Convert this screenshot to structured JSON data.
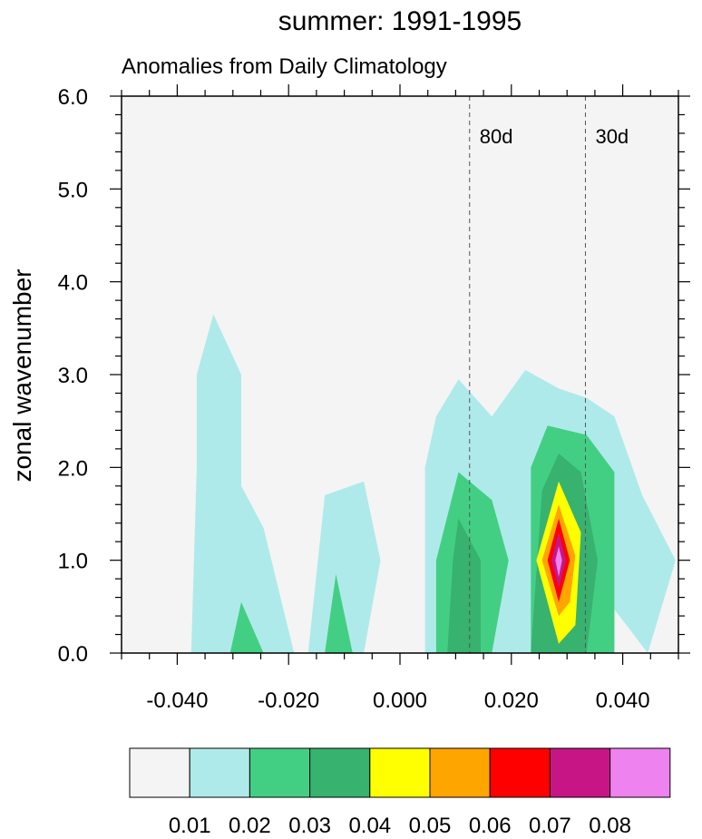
{
  "chart_data": {
    "type": "heatmap",
    "title": "summer: 1991-1995",
    "subtitle": "Anomalies from Daily Climatology",
    "xlabel": "",
    "ylabel": "zonal wavenumber",
    "xlim": [
      -0.05,
      0.05
    ],
    "ylim": [
      0,
      6
    ],
    "x_ticks": [
      -0.04,
      -0.02,
      0.0,
      0.02,
      0.04
    ],
    "x_tick_labels": [
      "-0.040",
      "-0.020",
      "0.000",
      "0.020",
      "0.040"
    ],
    "y_ticks": [
      0,
      1,
      2,
      3,
      4,
      5,
      6
    ],
    "y_tick_labels": [
      "0.0",
      "1.0",
      "2.0",
      "3.0",
      "4.0",
      "5.0",
      "6.0"
    ],
    "reference_lines": [
      {
        "x": 0.0125,
        "label": "80d"
      },
      {
        "x": 0.0333,
        "label": "30d"
      }
    ],
    "levels": [
      0.01,
      0.02,
      0.03,
      0.04,
      0.05,
      0.06,
      0.07,
      0.08
    ],
    "level_labels": [
      "0.01",
      "0.02",
      "0.03",
      "0.04",
      "0.05",
      "0.06",
      "0.07",
      "0.08"
    ],
    "colors": [
      "#f4f4f4",
      "#afeaea",
      "#43cf83",
      "#37b26f",
      "#ffff00",
      "#ffa500",
      "#ff0000",
      "#c71585",
      "#ee82ee"
    ],
    "contours": [
      {
        "level": 0.01,
        "points": [
          [
            -0.0365,
            3.0
          ],
          [
            -0.0335,
            3.65
          ],
          [
            -0.0285,
            3.0
          ],
          [
            -0.0285,
            1.8
          ],
          [
            -0.0245,
            1.35
          ],
          [
            -0.019,
            0.0
          ],
          [
            -0.0375,
            0.0
          ],
          [
            -0.0365,
            2.0
          ]
        ]
      },
      {
        "level": 0.01,
        "points": [
          [
            -0.0165,
            0.0
          ],
          [
            -0.0135,
            1.7
          ],
          [
            -0.0065,
            1.85
          ],
          [
            -0.0035,
            1.0
          ],
          [
            -0.0065,
            0.0
          ]
        ]
      },
      {
        "level": 0.01,
        "points": [
          [
            0.0045,
            0.0
          ],
          [
            0.0045,
            2.0
          ],
          [
            0.0065,
            2.55
          ],
          [
            0.0105,
            2.95
          ],
          [
            0.0165,
            2.55
          ],
          [
            0.0225,
            3.05
          ],
          [
            0.0285,
            2.85
          ],
          [
            0.0335,
            2.75
          ],
          [
            0.0385,
            2.55
          ],
          [
            0.0435,
            1.7
          ],
          [
            0.0495,
            1.0
          ],
          [
            0.0445,
            0.0
          ],
          [
            0.0375,
            0.55
          ],
          [
            0.0335,
            0.0
          ]
        ]
      },
      {
        "level": 0.02,
        "points": [
          [
            -0.0305,
            0.0
          ],
          [
            -0.0285,
            0.55
          ],
          [
            -0.0245,
            0.0
          ]
        ]
      },
      {
        "level": 0.02,
        "points": [
          [
            -0.0135,
            0.0
          ],
          [
            -0.0115,
            0.85
          ],
          [
            -0.0085,
            0.0
          ]
        ]
      },
      {
        "level": 0.02,
        "points": [
          [
            0.0065,
            0.0
          ],
          [
            0.0065,
            1.0
          ],
          [
            0.0105,
            1.95
          ],
          [
            0.0165,
            1.65
          ],
          [
            0.0195,
            1.0
          ],
          [
            0.0165,
            0.0
          ]
        ]
      },
      {
        "level": 0.02,
        "points": [
          [
            0.0235,
            0.0
          ],
          [
            0.0235,
            2.0
          ],
          [
            0.0265,
            2.45
          ],
          [
            0.0335,
            2.35
          ],
          [
            0.0385,
            1.95
          ],
          [
            0.0385,
            0.0
          ]
        ]
      },
      {
        "level": 0.03,
        "points": [
          [
            0.0085,
            0.0
          ],
          [
            0.0095,
            1.0
          ],
          [
            0.0105,
            1.45
          ],
          [
            0.0145,
            1.0
          ],
          [
            0.0145,
            0.0
          ]
        ]
      },
      {
        "level": 0.03,
        "points": [
          [
            0.0235,
            0.0
          ],
          [
            0.0255,
            1.75
          ],
          [
            0.0285,
            2.15
          ],
          [
            0.0325,
            1.95
          ],
          [
            0.0355,
            1.0
          ],
          [
            0.0335,
            0.0
          ]
        ]
      },
      {
        "level": 0.04,
        "points": [
          [
            0.0245,
            1.0
          ],
          [
            0.0285,
            1.85
          ],
          [
            0.0325,
            1.3
          ],
          [
            0.0315,
            0.3
          ],
          [
            0.0285,
            0.1
          ]
        ]
      },
      {
        "level": 0.05,
        "points": [
          [
            0.0255,
            1.0
          ],
          [
            0.0285,
            1.6
          ],
          [
            0.0315,
            1.05
          ],
          [
            0.0305,
            0.55
          ],
          [
            0.0285,
            0.4
          ]
        ]
      },
      {
        "level": 0.06,
        "points": [
          [
            0.0265,
            1.0
          ],
          [
            0.0285,
            1.45
          ],
          [
            0.0305,
            1.0
          ],
          [
            0.0285,
            0.55
          ]
        ]
      },
      {
        "level": 0.07,
        "points": [
          [
            0.0272,
            1.0
          ],
          [
            0.0285,
            1.3
          ],
          [
            0.0298,
            1.0
          ],
          [
            0.0285,
            0.7
          ]
        ]
      },
      {
        "level": 0.08,
        "points": [
          [
            0.0279,
            1.0
          ],
          [
            0.0285,
            1.15
          ],
          [
            0.0291,
            1.0
          ],
          [
            0.0285,
            0.82
          ]
        ]
      }
    ]
  }
}
